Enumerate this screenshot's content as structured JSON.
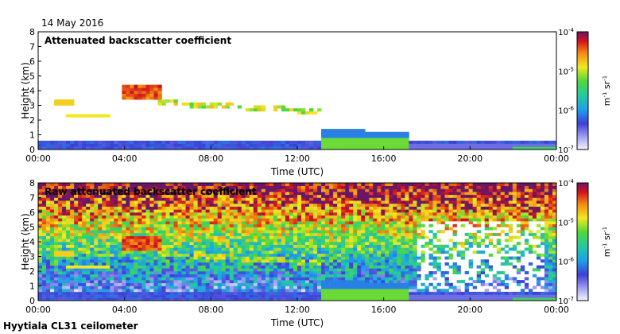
{
  "header": {
    "date": "14 May 2016"
  },
  "footer": {
    "instrument": "Hyytiala CL31 ceilometer"
  },
  "chart_data": [
    {
      "type": "heatmap",
      "title": "Attenuated backscatter coefficient",
      "xlabel": "Time (UTC)",
      "ylabel": "Height (km)",
      "x_ticks": [
        "00:00",
        "04:00",
        "08:00",
        "12:00",
        "16:00",
        "20:00",
        "00:00"
      ],
      "x_range_hours": [
        0,
        24
      ],
      "y_ticks": [
        "0",
        "1",
        "2",
        "3",
        "4",
        "5",
        "6",
        "7",
        "8"
      ],
      "ylim": [
        0,
        8
      ],
      "colorbar": {
        "label": "m-1 sr-1",
        "scale": "log",
        "range": [
          1e-07,
          0.0001
        ],
        "tick_labels": [
          "10-7",
          "10-6",
          "10-5",
          "10-4"
        ]
      },
      "features": [
        {
          "name": "near-surface aerosol layer",
          "t_start": 0,
          "t_end": 24,
          "height_top_km": 0.6
        },
        {
          "name": "cloud layer",
          "t_start": 0.8,
          "t_end": 1.6,
          "height_km": 3.2
        },
        {
          "name": "cloud layer",
          "t_start": 1.3,
          "t_end": 3.3,
          "height_km": 2.3
        },
        {
          "name": "elevated cloud",
          "t_start": 3.8,
          "t_end": 5.7,
          "height_km": 3.8
        },
        {
          "name": "sloping cloud layer",
          "t_start": 5.5,
          "t_end": 13.2,
          "height_km": 2.7
        },
        {
          "name": "boundary layer",
          "t_start": 13.2,
          "t_end": 17.2,
          "height_top_km": 1.5
        },
        {
          "name": "evening residual layer",
          "t_start": 17.2,
          "t_end": 24,
          "height_top_km": 0.4
        }
      ]
    },
    {
      "type": "heatmap",
      "title": "Raw attenuated backscatter coefficient",
      "xlabel": "Time (UTC)",
      "ylabel": "Height (km)",
      "x_ticks": [
        "00:00",
        "04:00",
        "08:00",
        "12:00",
        "16:00",
        "20:00",
        "00:00"
      ],
      "x_range_hours": [
        0,
        24
      ],
      "y_ticks": [
        "0",
        "1",
        "2",
        "3",
        "4",
        "5",
        "6",
        "7",
        "8"
      ],
      "ylim": [
        0,
        8
      ],
      "colorbar": {
        "label": "m-1 sr-1",
        "scale": "log",
        "range": [
          1e-07,
          0.0001
        ],
        "tick_labels": [
          "10-7",
          "10-6",
          "10-5",
          "10-4"
        ]
      }
    }
  ]
}
